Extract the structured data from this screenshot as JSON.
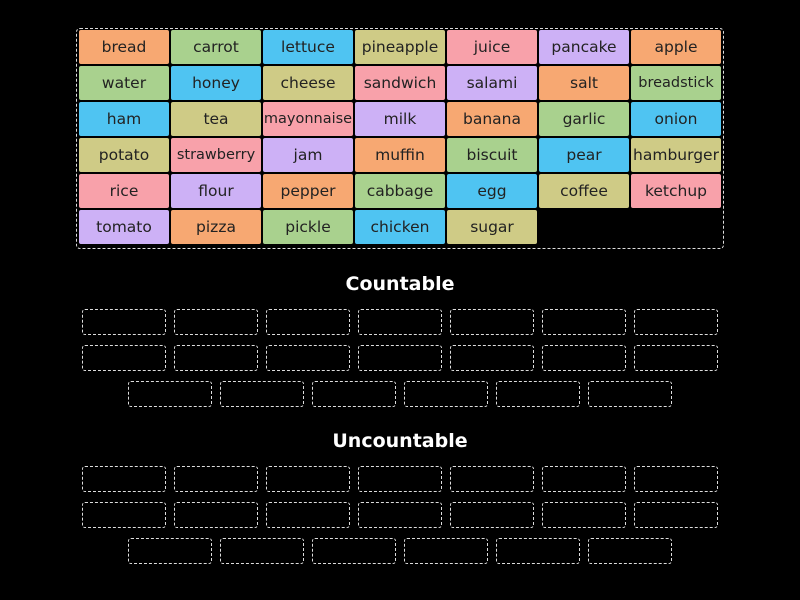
{
  "tiles": [
    {
      "label": "bread",
      "color": "#f7a872"
    },
    {
      "label": "carrot",
      "color": "#a9d18e"
    },
    {
      "label": "lettuce",
      "color": "#4fc4f2"
    },
    {
      "label": "pineapple",
      "color": "#cfcb86"
    },
    {
      "label": "juice",
      "color": "#f8a1aa"
    },
    {
      "label": "pancake",
      "color": "#cdb1f6"
    },
    {
      "label": "apple",
      "color": "#f7a872"
    },
    {
      "label": "water",
      "color": "#a9d18e"
    },
    {
      "label": "honey",
      "color": "#4fc4f2"
    },
    {
      "label": "cheese",
      "color": "#cfcb86"
    },
    {
      "label": "sandwich",
      "color": "#f8a1aa"
    },
    {
      "label": "salami",
      "color": "#cdb1f6"
    },
    {
      "label": "salt",
      "color": "#f7a872"
    },
    {
      "label": "breadstick",
      "color": "#a9d18e"
    },
    {
      "label": "ham",
      "color": "#4fc4f2"
    },
    {
      "label": "tea",
      "color": "#cfcb86"
    },
    {
      "label": "mayonnaise",
      "color": "#f8a1aa"
    },
    {
      "label": "milk",
      "color": "#cdb1f6"
    },
    {
      "label": "banana",
      "color": "#f7a872"
    },
    {
      "label": "garlic",
      "color": "#a9d18e"
    },
    {
      "label": "onion",
      "color": "#4fc4f2"
    },
    {
      "label": "potato",
      "color": "#cfcb86"
    },
    {
      "label": "strawberry",
      "color": "#f8a1aa"
    },
    {
      "label": "jam",
      "color": "#cdb1f6"
    },
    {
      "label": "muffin",
      "color": "#f7a872"
    },
    {
      "label": "biscuit",
      "color": "#a9d18e"
    },
    {
      "label": "pear",
      "color": "#4fc4f2"
    },
    {
      "label": "hamburger",
      "color": "#cfcb86"
    },
    {
      "label": "rice",
      "color": "#f8a1aa"
    },
    {
      "label": "flour",
      "color": "#cdb1f6"
    },
    {
      "label": "pepper",
      "color": "#f7a872"
    },
    {
      "label": "cabbage",
      "color": "#a9d18e"
    },
    {
      "label": "egg",
      "color": "#4fc4f2"
    },
    {
      "label": "coffee",
      "color": "#cfcb86"
    },
    {
      "label": "ketchup",
      "color": "#f8a1aa"
    },
    {
      "label": "tomato",
      "color": "#cdb1f6"
    },
    {
      "label": "pizza",
      "color": "#f7a872"
    },
    {
      "label": "pickle",
      "color": "#a9d18e"
    },
    {
      "label": "chicken",
      "color": "#4fc4f2"
    },
    {
      "label": "sugar",
      "color": "#cfcb86"
    }
  ],
  "groups": [
    {
      "title": "Countable"
    },
    {
      "title": "Uncountable"
    }
  ]
}
